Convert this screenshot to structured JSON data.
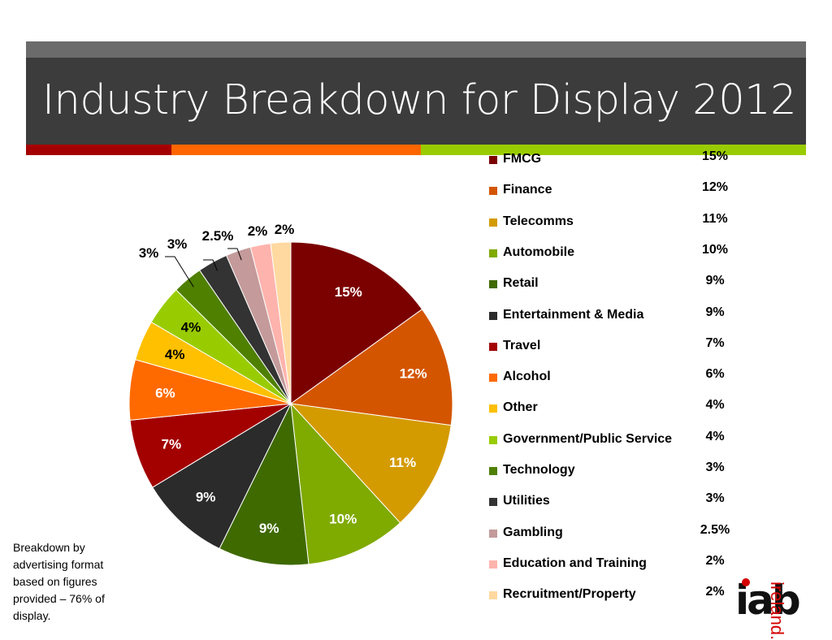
{
  "title": "Industry Breakdown for Display 2012",
  "note": "Breakdown by advertising format based on figures provided – 76% of display.",
  "logo": {
    "main": "iab",
    "sub": "ireland."
  },
  "colors": {
    "title_bar": "#3c3c3c",
    "accent_red": "#a50000",
    "accent_orange": "#ff6600",
    "accent_green": "#99cc00"
  },
  "chart_data": {
    "type": "pie",
    "title": "",
    "categories": [
      "FMCG",
      "Finance",
      "Telecomms",
      "Automobile",
      "Retail",
      "Entertainment & Media",
      "Travel",
      "Alcohol",
      "Other",
      "Government/Public Service",
      "Technology",
      "Utilities",
      "Gambling",
      "Education and Training",
      "Recruitment/Property"
    ],
    "values": [
      15,
      12,
      11,
      10,
      9,
      9,
      7,
      6,
      4,
      4,
      3,
      3,
      2.5,
      2,
      2
    ],
    "labels": [
      "15%",
      "12%",
      "11%",
      "10%",
      "9%",
      "9%",
      "7%",
      "6%",
      "4%",
      "4%",
      "3%",
      "3%",
      "2.5%",
      "2%",
      "2%"
    ],
    "colors": [
      "#7b0000",
      "#d45500",
      "#d49b00",
      "#7faa00",
      "#3f6a00",
      "#2b2b2b",
      "#a30000",
      "#ff6a00",
      "#ffc000",
      "#99cc00",
      "#4f8000",
      "#333333",
      "#c49a9a",
      "#ffb3ad",
      "#ffd9a0"
    ],
    "legend": "right"
  }
}
